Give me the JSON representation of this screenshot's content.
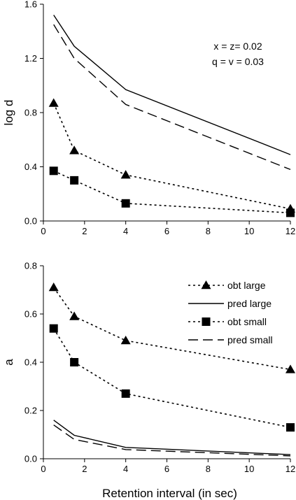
{
  "chart_data": [
    {
      "type": "line",
      "panel": "top",
      "xlabel": "",
      "ylabel": "log d",
      "xlim": [
        0,
        12
      ],
      "ylim": [
        0,
        1.6
      ],
      "xticks": [
        "0",
        "2",
        "4",
        "6",
        "8",
        "10",
        "12"
      ],
      "yticks": [
        "0.0",
        "0.4",
        "0.8",
        "1.2",
        "1.6"
      ],
      "x": [
        0.5,
        1.5,
        4,
        12
      ],
      "annotations": [
        "x = z= 0.02",
        "q = v = 0.03"
      ],
      "series": [
        {
          "role": "obt-large",
          "style": "dotted",
          "marker": "triangle",
          "color": "#000000",
          "values": [
            0.87,
            0.52,
            0.34,
            0.09
          ]
        },
        {
          "role": "pred-large",
          "style": "solid",
          "marker": "none",
          "color": "#000000",
          "values": [
            1.52,
            1.29,
            0.97,
            0.49
          ]
        },
        {
          "role": "obt-small",
          "style": "dotted",
          "marker": "square",
          "color": "#000000",
          "values": [
            0.37,
            0.3,
            0.13,
            0.06
          ]
        },
        {
          "role": "pred-small",
          "style": "dashed",
          "marker": "none",
          "color": "#000000",
          "values": [
            1.45,
            1.2,
            0.86,
            0.38
          ]
        }
      ]
    },
    {
      "type": "line",
      "panel": "bottom",
      "xlabel": "Retention interval (in sec)",
      "ylabel": "a",
      "xlim": [
        0,
        12
      ],
      "ylim": [
        0,
        0.8
      ],
      "xticks": [
        "0",
        "2",
        "4",
        "6",
        "8",
        "10",
        "12"
      ],
      "yticks": [
        "0.0",
        "0.2",
        "0.4",
        "0.6",
        "0.8"
      ],
      "x": [
        0.5,
        1.5,
        4,
        12
      ],
      "legend_position": "top-right",
      "series": [
        {
          "name": "obt large",
          "style": "dotted",
          "marker": "triangle",
          "color": "#000000",
          "values": [
            0.71,
            0.59,
            0.49,
            0.37
          ]
        },
        {
          "name": "pred large",
          "style": "solid",
          "marker": "none",
          "color": "#000000",
          "values": [
            0.16,
            0.097,
            0.047,
            0.017
          ]
        },
        {
          "name": "obt small",
          "style": "dotted",
          "marker": "square",
          "color": "#000000",
          "values": [
            0.54,
            0.4,
            0.27,
            0.13
          ]
        },
        {
          "name": "pred small",
          "style": "dashed",
          "marker": "none",
          "color": "#000000",
          "values": [
            0.14,
            0.08,
            0.038,
            0.012
          ]
        }
      ]
    }
  ]
}
